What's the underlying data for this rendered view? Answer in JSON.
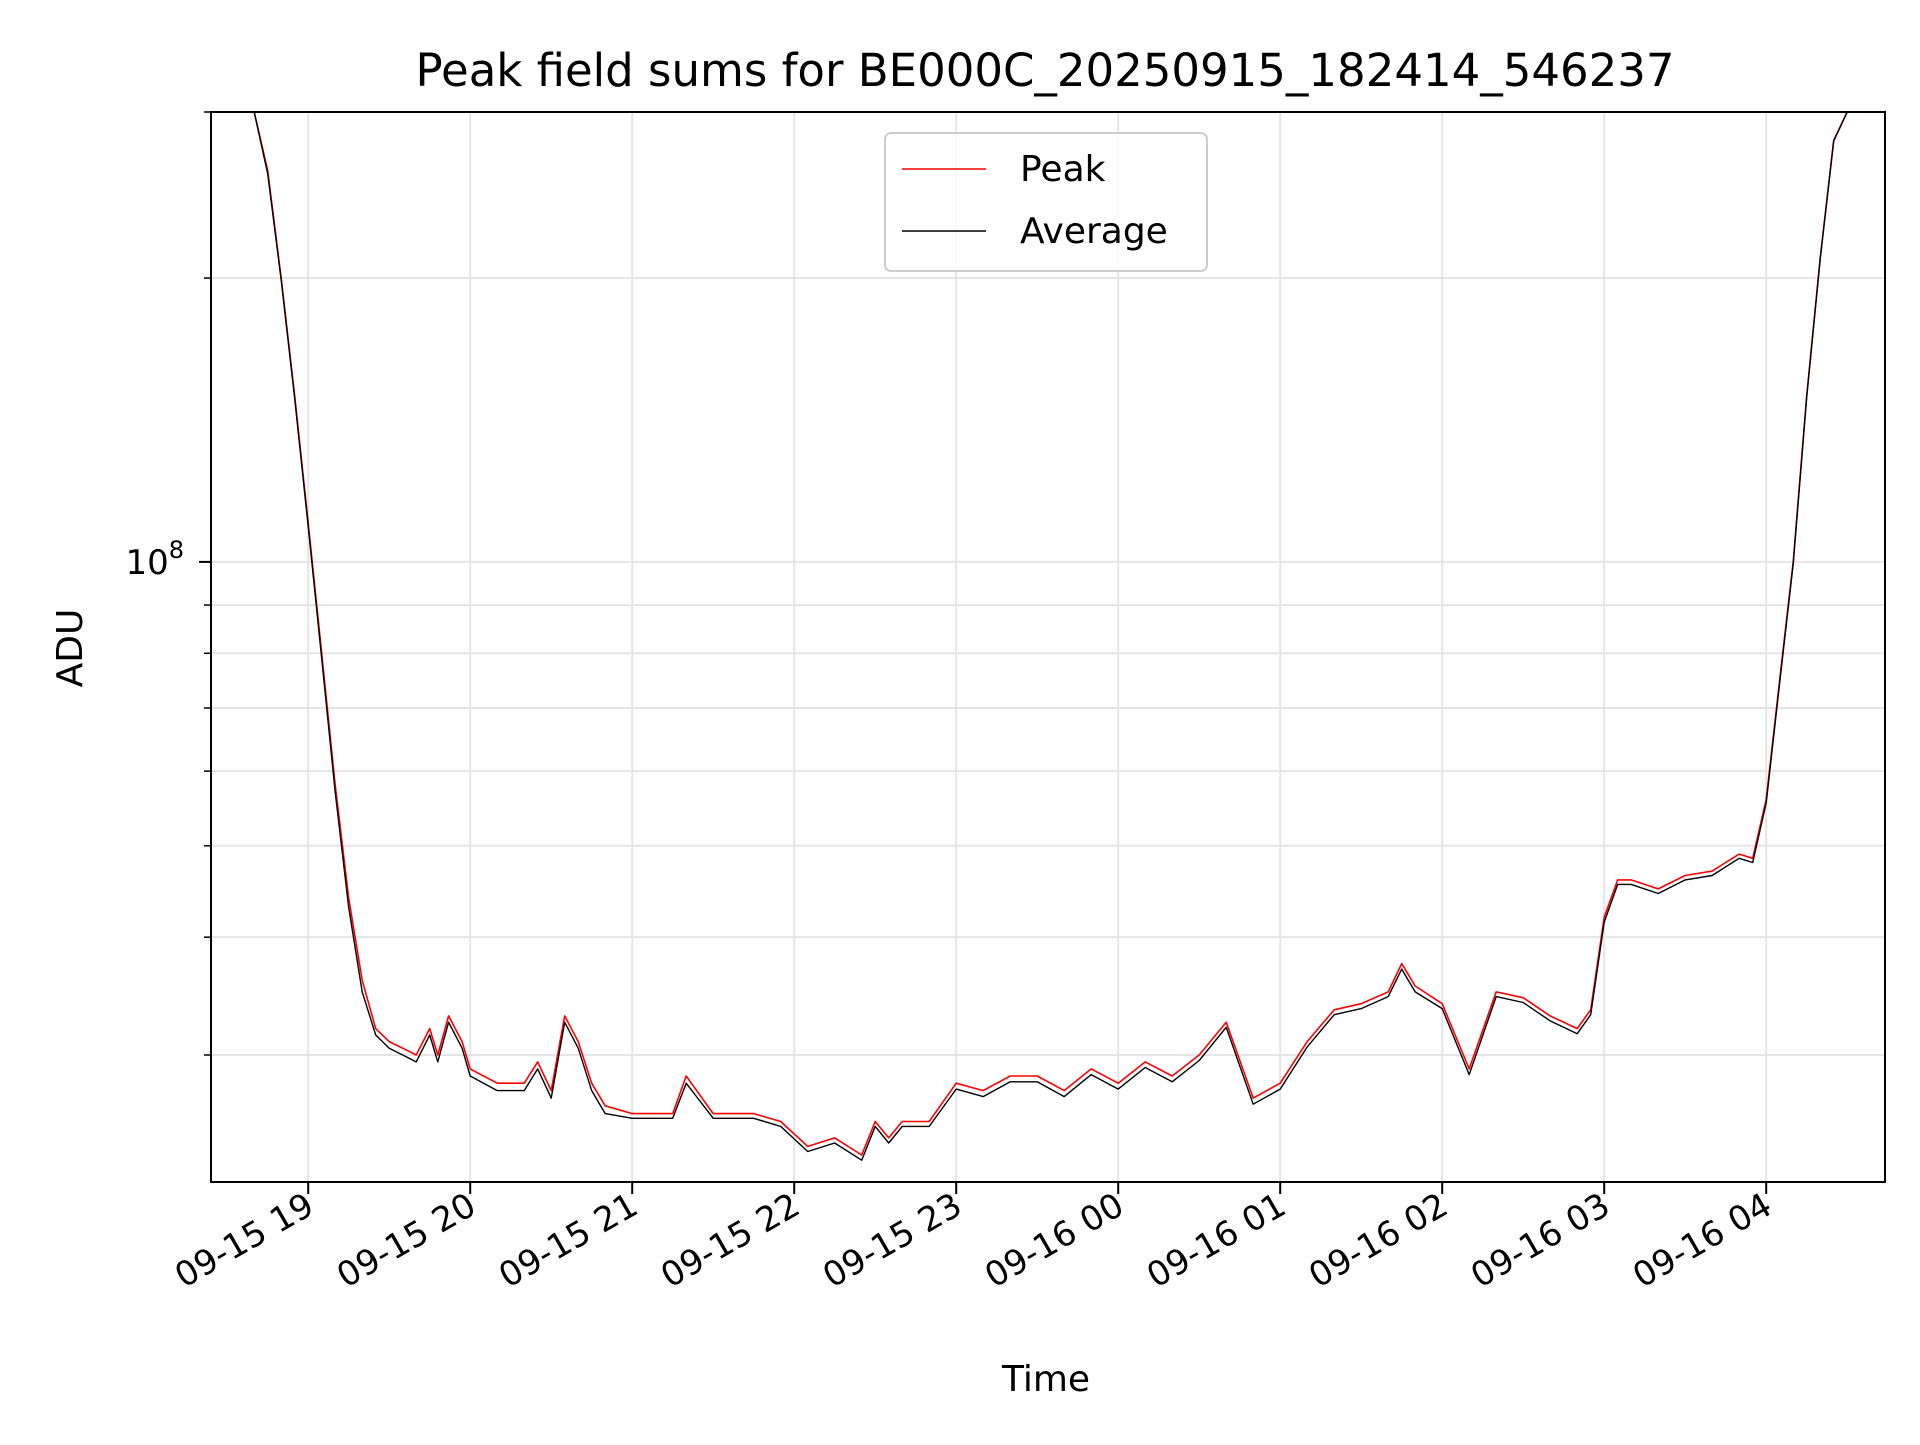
{
  "chart_data": {
    "type": "line",
    "title": "Peak field sums for BE000C_20250915_182414_546237",
    "xlabel": "Time",
    "ylabel": "ADU",
    "y_scale": "log",
    "y_tick_label": {
      "base": "10",
      "exp": "8"
    },
    "ylim": [
      22000000,
      300000000
    ],
    "xlim": [
      "2025-09-15 18:24",
      "2025-09-16 04:44"
    ],
    "x_tick_labels": [
      "09-15 19",
      "09-15 20",
      "09-15 21",
      "09-15 22",
      "09-15 23",
      "09-16 00",
      "09-16 01",
      "09-16 02",
      "09-16 03",
      "09-16 04"
    ],
    "x_ticks": [
      "2025-09-15 19:00",
      "2025-09-15 20:00",
      "2025-09-15 21:00",
      "2025-09-15 22:00",
      "2025-09-15 23:00",
      "2025-09-16 00:00",
      "2025-09-16 01:00",
      "2025-09-16 02:00",
      "2025-09-16 03:00",
      "2025-09-16 04:00"
    ],
    "grid": true,
    "legend_position": "upper center",
    "x": [
      "2025-09-15 18:24",
      "2025-09-15 18:40",
      "2025-09-15 18:45",
      "2025-09-15 18:50",
      "2025-09-15 18:55",
      "2025-09-15 19:00",
      "2025-09-15 19:05",
      "2025-09-15 19:10",
      "2025-09-15 19:15",
      "2025-09-15 19:20",
      "2025-09-15 19:25",
      "2025-09-15 19:30",
      "2025-09-15 19:35",
      "2025-09-15 19:40",
      "2025-09-15 19:45",
      "2025-09-15 19:48",
      "2025-09-15 19:52",
      "2025-09-15 19:57",
      "2025-09-15 20:00",
      "2025-09-15 20:10",
      "2025-09-15 20:20",
      "2025-09-15 20:25",
      "2025-09-15 20:30",
      "2025-09-15 20:35",
      "2025-09-15 20:40",
      "2025-09-15 20:45",
      "2025-09-15 20:50",
      "2025-09-15 21:00",
      "2025-09-15 21:15",
      "2025-09-15 21:20",
      "2025-09-15 21:30",
      "2025-09-15 21:45",
      "2025-09-15 21:55",
      "2025-09-15 22:05",
      "2025-09-15 22:15",
      "2025-09-15 22:25",
      "2025-09-15 22:30",
      "2025-09-15 22:35",
      "2025-09-15 22:40",
      "2025-09-15 22:50",
      "2025-09-15 23:00",
      "2025-09-15 23:10",
      "2025-09-15 23:20",
      "2025-09-15 23:30",
      "2025-09-15 23:40",
      "2025-09-15 23:50",
      "2025-09-16 00:00",
      "2025-09-16 00:10",
      "2025-09-16 00:20",
      "2025-09-16 00:30",
      "2025-09-16 00:40",
      "2025-09-16 00:50",
      "2025-09-16 01:00",
      "2025-09-16 01:10",
      "2025-09-16 01:20",
      "2025-09-16 01:30",
      "2025-09-16 01:40",
      "2025-09-16 01:45",
      "2025-09-16 01:50",
      "2025-09-16 02:00",
      "2025-09-16 02:10",
      "2025-09-16 02:20",
      "2025-09-16 02:30",
      "2025-09-16 02:40",
      "2025-09-16 02:50",
      "2025-09-16 02:55",
      "2025-09-16 03:00",
      "2025-09-16 03:05",
      "2025-09-16 03:10",
      "2025-09-16 03:20",
      "2025-09-16 03:30",
      "2025-09-16 03:40",
      "2025-09-16 03:45",
      "2025-09-16 03:50",
      "2025-09-16 03:55",
      "2025-09-16 04:00",
      "2025-09-16 04:05",
      "2025-09-16 04:10",
      "2025-09-16 04:15",
      "2025-09-16 04:20",
      "2025-09-16 04:25",
      "2025-09-16 04:30",
      "2025-09-16 04:44"
    ],
    "series": [
      {
        "name": "Peak",
        "color": "#ff0000",
        "values": [
          300000000,
          300000000,
          260000000,
          200000000,
          150000000,
          110000000,
          80000000,
          58000000,
          44000000,
          36000000,
          32000000,
          31000000,
          30500000,
          30000000,
          32000000,
          30000000,
          33000000,
          31000000,
          29000000,
          28000000,
          28000000,
          29500000,
          27500000,
          33000000,
          31000000,
          28000000,
          26500000,
          26000000,
          26000000,
          28500000,
          26000000,
          26000000,
          25500000,
          24000000,
          24500000,
          23500000,
          25500000,
          24500000,
          25500000,
          25500000,
          28000000,
          27500000,
          28500000,
          28500000,
          27500000,
          29000000,
          28000000,
          29500000,
          28500000,
          30000000,
          32500000,
          27000000,
          28000000,
          31000000,
          33500000,
          34000000,
          35000000,
          37500000,
          35500000,
          34000000,
          29000000,
          35000000,
          34500000,
          33000000,
          32000000,
          33500000,
          42000000,
          46000000,
          46000000,
          45000000,
          46500000,
          47000000,
          48000000,
          49000000,
          48500000,
          56000000,
          75000000,
          100000000,
          150000000,
          210000000,
          280000000,
          300000000,
          300000000
        ]
      },
      {
        "name": "Average",
        "color": "#000000",
        "values": [
          300000000,
          300000000,
          258000000,
          199000000,
          149000000,
          109000000,
          79000000,
          57000000,
          43000000,
          35000000,
          31500000,
          30500000,
          30000000,
          29500000,
          31500000,
          29500000,
          32500000,
          30500000,
          28500000,
          27500000,
          27500000,
          29000000,
          27000000,
          32500000,
          30500000,
          27500000,
          26000000,
          25700000,
          25700000,
          28000000,
          25700000,
          25700000,
          25200000,
          23700000,
          24200000,
          23200000,
          25200000,
          24200000,
          25200000,
          25200000,
          27600000,
          27100000,
          28100000,
          28100000,
          27100000,
          28600000,
          27600000,
          29100000,
          28100000,
          29600000,
          32100000,
          26600000,
          27600000,
          30600000,
          33100000,
          33600000,
          34600000,
          37000000,
          35000000,
          33600000,
          28600000,
          34600000,
          34100000,
          32600000,
          31600000,
          33100000,
          41500000,
          45500000,
          45500000,
          44500000,
          46000000,
          46500000,
          47500000,
          48500000,
          48000000,
          55500000,
          74500000,
          99500000,
          149500000,
          209500000,
          279500000,
          300000000,
          300000000
        ]
      }
    ]
  }
}
